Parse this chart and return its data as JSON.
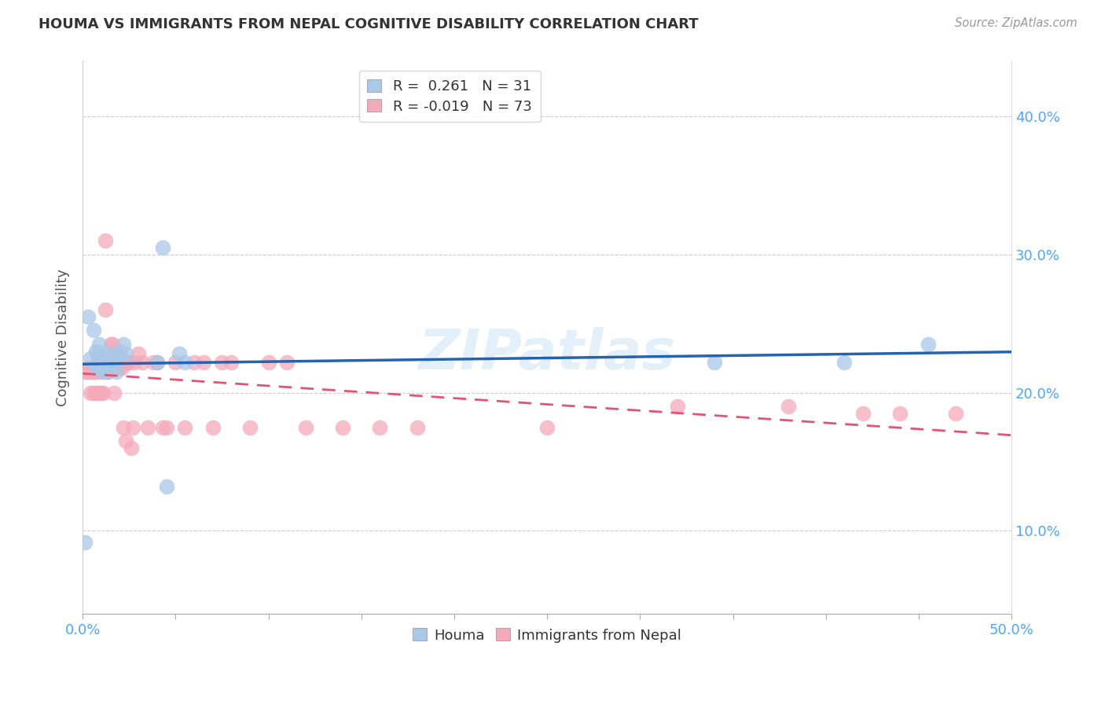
{
  "title": "HOUMA VS IMMIGRANTS FROM NEPAL COGNITIVE DISABILITY CORRELATION CHART",
  "source": "Source: ZipAtlas.com",
  "ylabel": "Cognitive Disability",
  "xlim": [
    0.0,
    0.5
  ],
  "ylim": [
    0.04,
    0.44
  ],
  "houma_R": 0.261,
  "houma_N": 31,
  "nepal_R": -0.019,
  "nepal_N": 73,
  "houma_color": "#aac8e8",
  "nepal_color": "#f5aabb",
  "houma_line_color": "#2563b0",
  "nepal_line_color": "#e05575",
  "watermark": "ZIPatlas",
  "legend_label_houma": "Houma",
  "legend_label_nepal": "Immigrants from Nepal",
  "houma_x": [
    0.001,
    0.003,
    0.004,
    0.006,
    0.007,
    0.007,
    0.008,
    0.009,
    0.009,
    0.01,
    0.011,
    0.011,
    0.012,
    0.013,
    0.013,
    0.014,
    0.015,
    0.016,
    0.017,
    0.018,
    0.02,
    0.022,
    0.023,
    0.04,
    0.043,
    0.045,
    0.052,
    0.055,
    0.34,
    0.41,
    0.455
  ],
  "houma_y": [
    0.092,
    0.255,
    0.225,
    0.245,
    0.23,
    0.218,
    0.228,
    0.235,
    0.218,
    0.228,
    0.225,
    0.215,
    0.222,
    0.228,
    0.215,
    0.222,
    0.225,
    0.228,
    0.222,
    0.215,
    0.228,
    0.235,
    0.228,
    0.222,
    0.305,
    0.132,
    0.228,
    0.222,
    0.222,
    0.222,
    0.235
  ],
  "nepal_x": [
    0.001,
    0.002,
    0.003,
    0.004,
    0.004,
    0.005,
    0.006,
    0.006,
    0.007,
    0.007,
    0.007,
    0.008,
    0.008,
    0.008,
    0.009,
    0.009,
    0.009,
    0.01,
    0.01,
    0.011,
    0.011,
    0.012,
    0.012,
    0.013,
    0.013,
    0.014,
    0.014,
    0.015,
    0.015,
    0.016,
    0.016,
    0.017,
    0.017,
    0.018,
    0.018,
    0.019,
    0.02,
    0.02,
    0.021,
    0.022,
    0.023,
    0.024,
    0.025,
    0.026,
    0.027,
    0.028,
    0.03,
    0.032,
    0.035,
    0.038,
    0.04,
    0.043,
    0.045,
    0.05,
    0.055,
    0.06,
    0.065,
    0.07,
    0.075,
    0.08,
    0.09,
    0.1,
    0.11,
    0.12,
    0.14,
    0.16,
    0.18,
    0.25,
    0.32,
    0.38,
    0.42,
    0.44,
    0.47
  ],
  "nepal_y": [
    0.215,
    0.215,
    0.218,
    0.215,
    0.2,
    0.215,
    0.215,
    0.2,
    0.218,
    0.215,
    0.2,
    0.222,
    0.218,
    0.2,
    0.222,
    0.215,
    0.2,
    0.218,
    0.2,
    0.215,
    0.2,
    0.31,
    0.26,
    0.225,
    0.215,
    0.225,
    0.215,
    0.235,
    0.222,
    0.235,
    0.218,
    0.23,
    0.2,
    0.225,
    0.218,
    0.222,
    0.23,
    0.218,
    0.218,
    0.175,
    0.165,
    0.222,
    0.222,
    0.16,
    0.175,
    0.222,
    0.228,
    0.222,
    0.175,
    0.222,
    0.222,
    0.175,
    0.175,
    0.222,
    0.175,
    0.222,
    0.222,
    0.175,
    0.222,
    0.222,
    0.175,
    0.222,
    0.222,
    0.175,
    0.175,
    0.175,
    0.175,
    0.175,
    0.19,
    0.19,
    0.185,
    0.185,
    0.185
  ]
}
